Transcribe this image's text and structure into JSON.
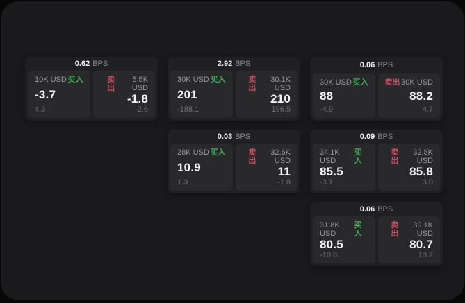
{
  "labels": {
    "buy": "买入",
    "sell": "卖出",
    "bps_unit": "BPS"
  },
  "colors": {
    "buy_green": "#3fae5a",
    "sell_red": "#c44f60",
    "card_bg": "#202023",
    "panel_bg": "#29292c",
    "window_bg": "#1a1a1c"
  },
  "cards": [
    {
      "row": 1,
      "col": 1,
      "bps": "0.62",
      "buy": {
        "size": "10K USD",
        "price": "-3.7",
        "delta": "4.3"
      },
      "sell": {
        "size": "5.5K USD",
        "price": "-1.8",
        "delta": "-2.6"
      }
    },
    {
      "row": 1,
      "col": 2,
      "bps": "2.92",
      "buy": {
        "size": "30K USD",
        "price": "201",
        "delta": "-188.1"
      },
      "sell": {
        "size": "30.1K USD",
        "price": "210",
        "delta": "196.5"
      }
    },
    {
      "row": 1,
      "col": 3,
      "bps": "0.06",
      "buy": {
        "size": "30K USD",
        "price": "88",
        "delta": "-4.9"
      },
      "sell": {
        "size": "30K USD",
        "price": "88.2",
        "delta": "4.7"
      }
    },
    {
      "row": 2,
      "col": 2,
      "bps": "0.03",
      "buy": {
        "size": "28K USD",
        "price": "10.9",
        "delta": "1.3"
      },
      "sell": {
        "size": "32.6K USD",
        "price": "11",
        "delta": "-1.8"
      }
    },
    {
      "row": 2,
      "col": 3,
      "bps": "0.09",
      "buy": {
        "size": "34.1K USD",
        "price": "85.5",
        "delta": "-3.1"
      },
      "sell": {
        "size": "32.8K USD",
        "price": "85.8",
        "delta": "3.0"
      }
    },
    {
      "row": 3,
      "col": 3,
      "bps": "0.06",
      "buy": {
        "size": "31.8K USD",
        "price": "80.5",
        "delta": "-10.8"
      },
      "sell": {
        "size": "39.1K USD",
        "price": "80.7",
        "delta": "10.2"
      }
    }
  ]
}
